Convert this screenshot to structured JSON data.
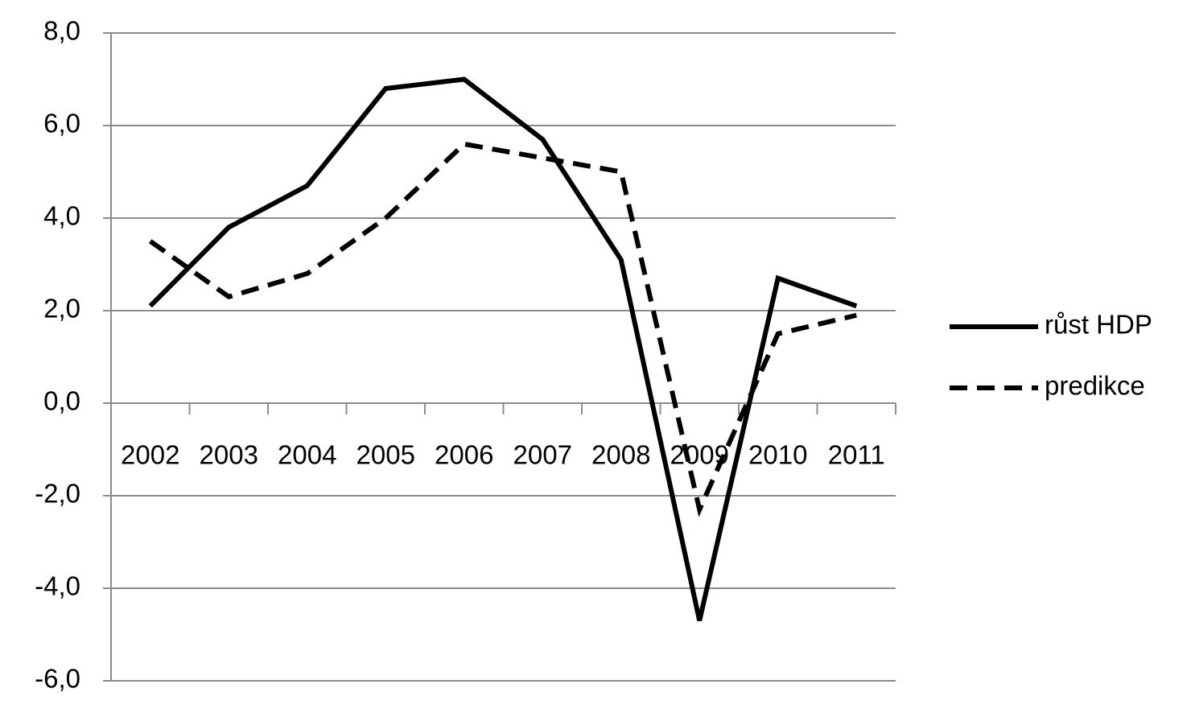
{
  "chart_data": {
    "type": "line",
    "categories": [
      "2002",
      "2003",
      "2004",
      "2005",
      "2006",
      "2007",
      "2008",
      "2009",
      "2010",
      "2011"
    ],
    "series": [
      {
        "name": "růst HDP",
        "color": "#000000",
        "dash": "solid",
        "values": [
          2.1,
          3.8,
          4.7,
          6.8,
          7.0,
          5.7,
          3.1,
          -4.7,
          2.7,
          2.1
        ]
      },
      {
        "name": "predikce",
        "color": "#000000",
        "dash": "dashed",
        "values": [
          3.5,
          2.3,
          2.8,
          4.0,
          5.6,
          5.3,
          5.0,
          -2.3,
          1.5,
          1.9
        ]
      }
    ],
    "ylim": [
      -6,
      8
    ],
    "yticks": [
      {
        "value": -6,
        "label": "-6,0"
      },
      {
        "value": -4,
        "label": "-4,0"
      },
      {
        "value": -2,
        "label": "-2,0"
      },
      {
        "value": 0,
        "label": "0,0"
      },
      {
        "value": 2,
        "label": "2,0"
      },
      {
        "value": 4,
        "label": "4,0"
      },
      {
        "value": 6,
        "label": "6,0"
      },
      {
        "value": 8,
        "label": "8,0"
      }
    ],
    "grid": true,
    "legend": "right"
  }
}
